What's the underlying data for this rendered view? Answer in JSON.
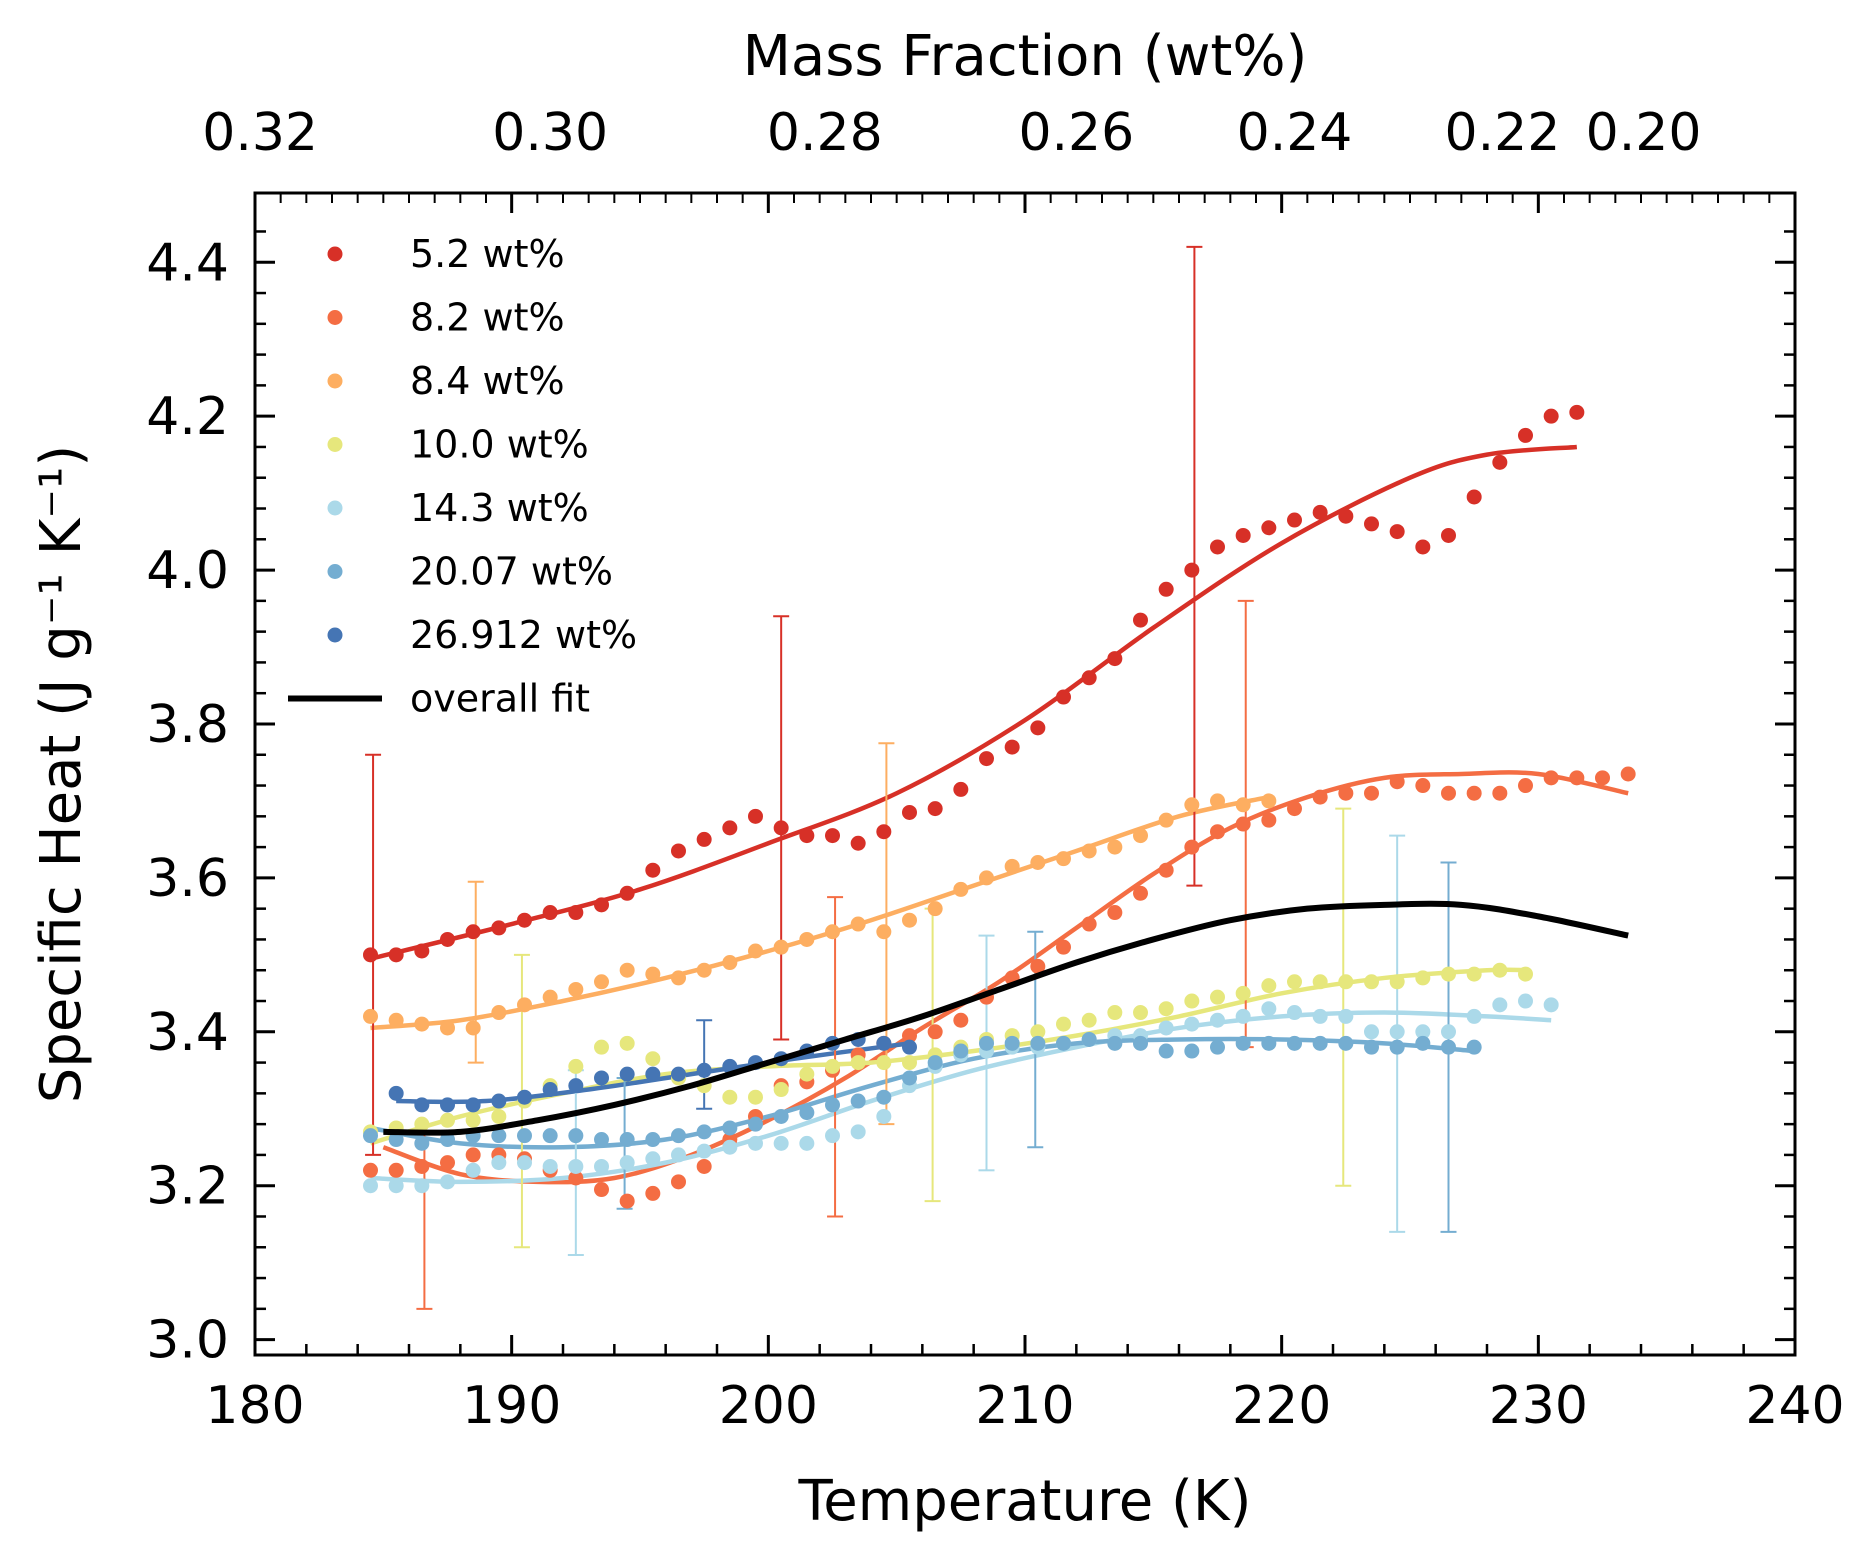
{
  "chart_data": {
    "type": "scatter",
    "title": "",
    "xlabel": "Temperature (K)",
    "ylabel": "Specific Heat (J g⁻¹ K⁻¹)",
    "x2label": "Mass Fraction (wt%)",
    "xlim": [
      180,
      240
    ],
    "ylim": [
      2.98,
      4.49
    ],
    "xticks": [
      180,
      190,
      200,
      210,
      220,
      230,
      240
    ],
    "yticks": [
      3.0,
      3.2,
      3.4,
      3.6,
      3.8,
      4.0,
      4.2,
      4.4
    ],
    "xtick_labels": [
      "180",
      "190",
      "200",
      "210",
      "220",
      "230",
      "240"
    ],
    "ytick_labels": [
      "3.0",
      "3.2",
      "3.4",
      "3.6",
      "3.8",
      "4.0",
      "4.2",
      "4.4"
    ],
    "x2ticks": [
      {
        "label": "0.32",
        "x": 180.2
      },
      {
        "label": "0.30",
        "x": 191.5
      },
      {
        "label": "0.28",
        "x": 202.2
      },
      {
        "label": "0.26",
        "x": 212.0
      },
      {
        "label": "0.24",
        "x": 220.5
      },
      {
        "label": "0.22",
        "x": 228.6
      },
      {
        "label": "0.20",
        "x": 234.1
      }
    ],
    "legend_position": "upper-left",
    "grid": false,
    "series": [
      {
        "name": "5.2 wt%",
        "color": "#d73027",
        "x": [
          184.5,
          185.5,
          186.5,
          187.5,
          188.5,
          189.5,
          190.5,
          191.5,
          192.5,
          193.5,
          194.5,
          195.5,
          196.5,
          197.5,
          198.5,
          199.5,
          200.5,
          201.5,
          202.5,
          203.5,
          204.5,
          205.5,
          206.5,
          207.5,
          208.5,
          209.5,
          210.5,
          211.5,
          212.5,
          213.5,
          214.5,
          215.5,
          216.5,
          217.5,
          218.5,
          219.5,
          220.5,
          221.5,
          222.5,
          223.5,
          224.5,
          225.5,
          226.5,
          227.5,
          228.5,
          229.5,
          230.5,
          231.5
        ],
        "y": [
          3.5,
          3.5,
          3.505,
          3.52,
          3.53,
          3.535,
          3.545,
          3.555,
          3.555,
          3.565,
          3.58,
          3.61,
          3.635,
          3.65,
          3.665,
          3.68,
          3.665,
          3.655,
          3.655,
          3.645,
          3.66,
          3.685,
          3.69,
          3.715,
          3.755,
          3.77,
          3.795,
          3.835,
          3.86,
          3.885,
          3.935,
          3.975,
          4.0,
          4.03,
          4.045,
          4.055,
          4.065,
          4.075,
          4.07,
          4.06,
          4.05,
          4.03,
          4.045,
          4.095,
          4.14,
          4.175,
          4.2,
          4.205
        ],
        "fit_x": [
          184.5,
          190,
          195,
          200,
          205,
          210,
          215,
          220,
          225,
          228,
          231.5
        ],
        "fit_y": [
          3.495,
          3.54,
          3.585,
          3.645,
          3.71,
          3.805,
          3.925,
          4.035,
          4.12,
          4.15,
          4.16
        ],
        "errorbars": [
          {
            "x": 184.6,
            "low": 3.24,
            "high": 3.76
          },
          {
            "x": 200.5,
            "low": 3.39,
            "high": 3.94
          },
          {
            "x": 216.6,
            "low": 3.59,
            "high": 4.42
          }
        ]
      },
      {
        "name": "8.2 wt%",
        "color": "#f46d43",
        "x": [
          184.5,
          185.5,
          186.5,
          187.5,
          188.5,
          189.5,
          190.5,
          191.5,
          192.5,
          193.5,
          194.5,
          195.5,
          196.5,
          197.5,
          198.5,
          199.5,
          200.5,
          201.5,
          202.5,
          203.5,
          204.5,
          205.5,
          206.5,
          207.5,
          208.5,
          209.5,
          210.5,
          211.5,
          212.5,
          213.5,
          214.5,
          215.5,
          216.5,
          217.5,
          218.5,
          219.5,
          220.5,
          221.5,
          222.5,
          223.5,
          224.5,
          225.5,
          226.5,
          227.5,
          228.5,
          229.5,
          230.5,
          231.5,
          232.5,
          233.5
        ],
        "y": [
          3.22,
          3.22,
          3.225,
          3.23,
          3.24,
          3.24,
          3.235,
          3.22,
          3.21,
          3.195,
          3.18,
          3.19,
          3.205,
          3.225,
          3.26,
          3.29,
          3.33,
          3.335,
          3.35,
          3.37,
          3.385,
          3.395,
          3.4,
          3.415,
          3.445,
          3.47,
          3.485,
          3.51,
          3.54,
          3.555,
          3.58,
          3.61,
          3.64,
          3.66,
          3.67,
          3.675,
          3.69,
          3.705,
          3.71,
          3.71,
          3.725,
          3.72,
          3.71,
          3.71,
          3.71,
          3.72,
          3.73,
          3.73,
          3.73,
          3.735
        ],
        "fit_x": [
          185,
          188,
          191,
          194,
          197,
          200,
          203,
          206,
          209,
          212,
          215,
          218,
          221,
          224,
          227,
          230,
          233.5
        ],
        "fit_y": [
          3.25,
          3.215,
          3.205,
          3.21,
          3.24,
          3.285,
          3.34,
          3.405,
          3.465,
          3.535,
          3.605,
          3.665,
          3.705,
          3.73,
          3.735,
          3.735,
          3.71
        ],
        "errorbars": [
          {
            "x": 186.6,
            "low": 3.04,
            "high": 3.27
          },
          {
            "x": 202.6,
            "low": 3.16,
            "high": 3.575
          },
          {
            "x": 218.6,
            "low": 3.38,
            "high": 3.96
          }
        ]
      },
      {
        "name": "8.4 wt%",
        "color": "#fdae61",
        "x": [
          184.5,
          185.5,
          186.5,
          187.5,
          188.5,
          189.5,
          190.5,
          191.5,
          192.5,
          193.5,
          194.5,
          195.5,
          196.5,
          197.5,
          198.5,
          199.5,
          200.5,
          201.5,
          202.5,
          203.5,
          204.5,
          205.5,
          206.5,
          207.5,
          208.5,
          209.5,
          210.5,
          211.5,
          212.5,
          213.5,
          214.5,
          215.5,
          216.5,
          217.5,
          218.5,
          219.5
        ],
        "y": [
          3.42,
          3.415,
          3.41,
          3.405,
          3.405,
          3.425,
          3.435,
          3.445,
          3.455,
          3.465,
          3.48,
          3.475,
          3.47,
          3.48,
          3.49,
          3.505,
          3.51,
          3.52,
          3.53,
          3.54,
          3.53,
          3.545,
          3.56,
          3.585,
          3.6,
          3.615,
          3.62,
          3.625,
          3.635,
          3.64,
          3.655,
          3.675,
          3.695,
          3.7,
          3.695,
          3.7
        ],
        "fit_x": [
          184.5,
          188,
          192,
          196,
          200,
          204,
          208,
          212,
          216,
          219.5
        ],
        "fit_y": [
          3.405,
          3.415,
          3.44,
          3.47,
          3.505,
          3.545,
          3.59,
          3.635,
          3.68,
          3.705
        ],
        "errorbars": [
          {
            "x": 188.6,
            "low": 3.36,
            "high": 3.595
          },
          {
            "x": 204.6,
            "low": 3.28,
            "high": 3.775
          }
        ]
      },
      {
        "name": "10.0 wt%",
        "color": "#e6e77c",
        "x": [
          184.5,
          185.5,
          186.5,
          187.5,
          188.5,
          189.5,
          190.5,
          191.5,
          192.5,
          193.5,
          194.5,
          195.5,
          196.5,
          197.5,
          198.5,
          199.5,
          200.5,
          201.5,
          202.5,
          203.5,
          204.5,
          205.5,
          206.5,
          207.5,
          208.5,
          209.5,
          210.5,
          211.5,
          212.5,
          213.5,
          214.5,
          215.5,
          216.5,
          217.5,
          218.5,
          219.5,
          220.5,
          221.5,
          222.5,
          223.5,
          224.5,
          225.5,
          226.5,
          227.5,
          228.5,
          229.5
        ],
        "y": [
          3.27,
          3.275,
          3.28,
          3.285,
          3.285,
          3.29,
          3.31,
          3.33,
          3.355,
          3.38,
          3.385,
          3.365,
          3.34,
          3.33,
          3.315,
          3.315,
          3.325,
          3.345,
          3.355,
          3.36,
          3.36,
          3.36,
          3.37,
          3.38,
          3.39,
          3.395,
          3.4,
          3.41,
          3.415,
          3.425,
          3.425,
          3.43,
          3.44,
          3.445,
          3.45,
          3.46,
          3.465,
          3.465,
          3.465,
          3.465,
          3.465,
          3.47,
          3.475,
          3.475,
          3.48,
          3.475
        ],
        "fit_x": [
          184.5,
          188,
          192,
          196,
          200,
          204,
          208,
          212,
          216,
          220,
          224,
          228,
          229.5
        ],
        "fit_y": [
          3.255,
          3.29,
          3.32,
          3.345,
          3.355,
          3.36,
          3.375,
          3.395,
          3.42,
          3.45,
          3.47,
          3.48,
          3.48
        ],
        "errorbars": [
          {
            "x": 190.4,
            "low": 3.12,
            "high": 3.5
          },
          {
            "x": 206.4,
            "low": 3.18,
            "high": 3.56
          },
          {
            "x": 222.4,
            "low": 3.2,
            "high": 3.69
          }
        ]
      },
      {
        "name": "14.3 wt%",
        "color": "#abd9e9",
        "x": [
          184.5,
          185.5,
          186.5,
          187.5,
          188.5,
          189.5,
          190.5,
          191.5,
          192.5,
          193.5,
          194.5,
          195.5,
          196.5,
          197.5,
          198.5,
          199.5,
          200.5,
          201.5,
          202.5,
          203.5,
          204.5,
          205.5,
          206.5,
          207.5,
          208.5,
          209.5,
          210.5,
          211.5,
          212.5,
          213.5,
          214.5,
          215.5,
          216.5,
          217.5,
          218.5,
          219.5,
          220.5,
          221.5,
          222.5,
          223.5,
          224.5,
          225.5,
          226.5,
          227.5,
          228.5,
          229.5,
          230.5
        ],
        "y": [
          3.2,
          3.2,
          3.2,
          3.205,
          3.22,
          3.23,
          3.23,
          3.225,
          3.225,
          3.225,
          3.23,
          3.235,
          3.24,
          3.245,
          3.25,
          3.255,
          3.255,
          3.255,
          3.265,
          3.27,
          3.29,
          3.33,
          3.355,
          3.37,
          3.375,
          3.38,
          3.38,
          3.385,
          3.39,
          3.395,
          3.395,
          3.405,
          3.41,
          3.415,
          3.42,
          3.43,
          3.425,
          3.42,
          3.42,
          3.4,
          3.4,
          3.4,
          3.4,
          3.42,
          3.435,
          3.44,
          3.435
        ],
        "fit_x": [
          184.5,
          188,
          192,
          196,
          200,
          204,
          208,
          212,
          216,
          220,
          224,
          228,
          230.5
        ],
        "fit_y": [
          3.21,
          3.205,
          3.21,
          3.23,
          3.265,
          3.31,
          3.35,
          3.38,
          3.405,
          3.42,
          3.425,
          3.42,
          3.415
        ],
        "errorbars": [
          {
            "x": 192.5,
            "low": 3.11,
            "high": 3.35
          },
          {
            "x": 208.5,
            "low": 3.22,
            "high": 3.525
          },
          {
            "x": 224.5,
            "low": 3.14,
            "high": 3.655
          }
        ]
      },
      {
        "name": "20.07 wt%",
        "color": "#74add1",
        "x": [
          184.5,
          185.5,
          186.5,
          187.5,
          188.5,
          189.5,
          190.5,
          191.5,
          192.5,
          193.5,
          194.5,
          195.5,
          196.5,
          197.5,
          198.5,
          199.5,
          200.5,
          201.5,
          202.5,
          203.5,
          204.5,
          205.5,
          206.5,
          207.5,
          208.5,
          209.5,
          210.5,
          211.5,
          212.5,
          213.5,
          214.5,
          215.5,
          216.5,
          217.5,
          218.5,
          219.5,
          220.5,
          221.5,
          222.5,
          223.5,
          224.5,
          225.5,
          226.5,
          227.5
        ],
        "y": [
          3.265,
          3.26,
          3.255,
          3.26,
          3.265,
          3.265,
          3.265,
          3.265,
          3.265,
          3.26,
          3.26,
          3.26,
          3.265,
          3.27,
          3.275,
          3.28,
          3.29,
          3.295,
          3.305,
          3.31,
          3.315,
          3.34,
          3.36,
          3.375,
          3.385,
          3.385,
          3.385,
          3.385,
          3.39,
          3.385,
          3.385,
          3.375,
          3.375,
          3.38,
          3.385,
          3.385,
          3.385,
          3.385,
          3.385,
          3.38,
          3.38,
          3.385,
          3.38,
          3.38
        ],
        "fit_x": [
          184.5,
          188,
          192,
          196,
          200,
          204,
          208,
          212,
          216,
          220,
          224,
          227.5
        ],
        "fit_y": [
          3.275,
          3.255,
          3.25,
          3.26,
          3.29,
          3.33,
          3.365,
          3.385,
          3.39,
          3.39,
          3.385,
          3.375
        ],
        "errorbars": [
          {
            "x": 194.4,
            "low": 3.17,
            "high": 3.34
          },
          {
            "x": 210.4,
            "low": 3.25,
            "high": 3.53
          },
          {
            "x": 226.5,
            "low": 3.14,
            "high": 3.62
          }
        ]
      },
      {
        "name": "26.912 wt%",
        "color": "#4575b4",
        "x": [
          185.5,
          186.5,
          187.5,
          188.5,
          189.5,
          190.5,
          191.5,
          192.5,
          193.5,
          194.5,
          195.5,
          196.5,
          197.5,
          198.5,
          199.5,
          200.5,
          201.5,
          202.5,
          203.5,
          204.5,
          205.5
        ],
        "y": [
          3.32,
          3.305,
          3.305,
          3.305,
          3.31,
          3.315,
          3.325,
          3.33,
          3.34,
          3.345,
          3.345,
          3.345,
          3.35,
          3.355,
          3.36,
          3.365,
          3.375,
          3.385,
          3.39,
          3.385,
          3.38
        ],
        "fit_x": [
          185.5,
          189,
          193,
          197,
          201,
          205.5
        ],
        "fit_y": [
          3.31,
          3.31,
          3.325,
          3.345,
          3.365,
          3.385
        ],
        "errorbars": [
          {
            "x": 197.5,
            "low": 3.3,
            "high": 3.415
          }
        ]
      }
    ],
    "overall_fit": {
      "name": "overall fit",
      "color": "#000000",
      "x": [
        185,
        188,
        191,
        194,
        197,
        200,
        203,
        206,
        209,
        212,
        215,
        218,
        221,
        224,
        227,
        230,
        233.5
      ],
      "y": [
        3.27,
        3.27,
        3.285,
        3.305,
        3.33,
        3.36,
        3.39,
        3.42,
        3.455,
        3.49,
        3.52,
        3.545,
        3.56,
        3.565,
        3.565,
        3.55,
        3.525
      ]
    }
  }
}
